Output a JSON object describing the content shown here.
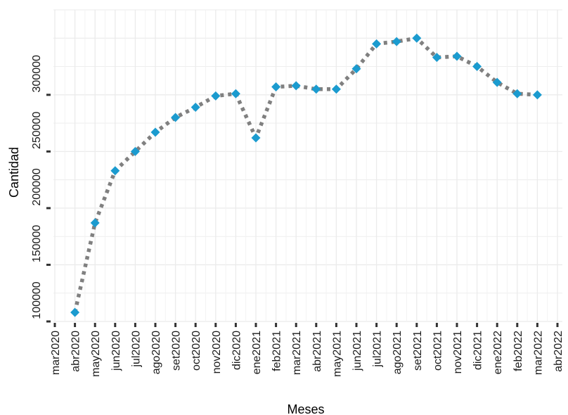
{
  "chart_data": {
    "type": "line",
    "title": "",
    "xlabel": "Meses",
    "ylabel": "Cantidad",
    "ylim": [
      100000,
      375000
    ],
    "grid": true,
    "legend": "none",
    "y_ticks": [
      100000,
      150000,
      200000,
      250000,
      300000
    ],
    "y_tick_labels": [
      "100000",
      "150000",
      "200000",
      "250000",
      "300000"
    ],
    "categories": [
      "mar2020",
      "abr2020",
      "may2020",
      "jun2020",
      "jul2020",
      "ago2020",
      "set2020",
      "oct2020",
      "nov2020",
      "dic2020",
      "ene2021",
      "feb2021",
      "mar2021",
      "abr2021",
      "may2021",
      "jun2021",
      "jul2021",
      "ago2021",
      "set2021",
      "oct2021",
      "nov2021",
      "dic2021",
      "ene2022",
      "feb2022",
      "mar2022",
      "abr2022"
    ],
    "series": [
      {
        "values": [
          null,
          108000,
          187000,
          233000,
          250000,
          267000,
          280000,
          289000,
          299000,
          301000,
          262000,
          307000,
          308000,
          305000,
          305000,
          323000,
          345000,
          347000,
          350000,
          333000,
          334000,
          325000,
          311000,
          301000,
          300000,
          null
        ],
        "point_color": "#1b9bcf",
        "line_color": "#808080",
        "line_style": "dotted"
      }
    ]
  }
}
